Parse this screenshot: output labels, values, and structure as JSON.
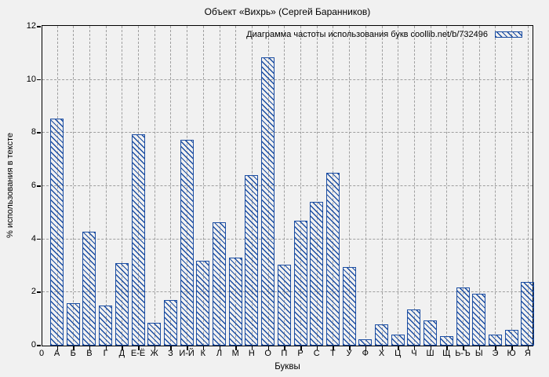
{
  "chart_data": {
    "type": "bar",
    "title": "Объект «Вихрь» (Сергей Баранников)",
    "legend_label": "Диаграмма частоты использования букв coollib.net/b/732496",
    "xlabel": "Буквы",
    "ylabel": "% использования в тексте",
    "origin_label": "0",
    "categories": [
      "А",
      "Б",
      "В",
      "Г",
      "Д",
      "Е-Ё",
      "Ж",
      "З",
      "И-Й",
      "К",
      "Л",
      "М",
      "Н",
      "О",
      "П",
      "Р",
      "С",
      "Т",
      "У",
      "Ф",
      "Х",
      "Ц",
      "Ч",
      "Ш",
      "Щ",
      "Ь-Ъ",
      "Ы",
      "Э",
      "Ю",
      "Я"
    ],
    "values": [
      8.55,
      1.6,
      4.3,
      1.5,
      3.1,
      7.95,
      0.85,
      1.7,
      7.75,
      3.2,
      4.65,
      3.3,
      6.4,
      10.85,
      3.05,
      4.7,
      5.4,
      6.5,
      2.95,
      0.25,
      0.8,
      0.4,
      1.35,
      0.95,
      0.35,
      2.2,
      1.95,
      0.4,
      0.6,
      2.4
    ],
    "ylim": [
      0,
      12
    ],
    "yticks": [
      0,
      2,
      4,
      6,
      8,
      10,
      12
    ],
    "grid": true,
    "legend_position": "top-right",
    "hatch_direction": "backslash",
    "colors": {
      "bar": "#1b4da2",
      "background": "#f1f1f1",
      "grid": "#9f9f9f",
      "frame": "#000000",
      "text": "#000000"
    }
  }
}
